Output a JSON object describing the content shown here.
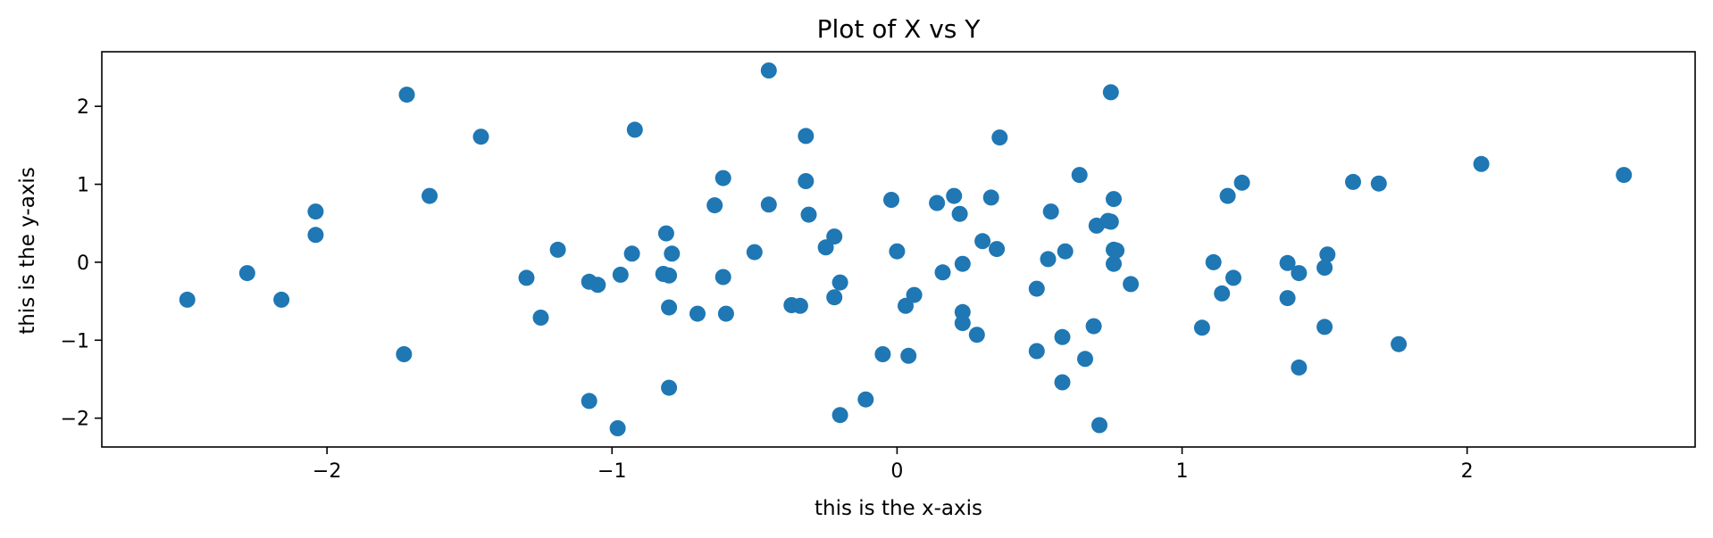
{
  "chart_data": {
    "type": "scatter",
    "title": "Plot of X vs Y",
    "xlabel": "this is the x-axis",
    "ylabel": "this is the y-axis",
    "xlim": [
      -2.79,
      2.8
    ],
    "ylim": [
      -2.37,
      2.7
    ],
    "xticks": [
      {
        "value": -2,
        "label": "−2"
      },
      {
        "value": -1,
        "label": "−1"
      },
      {
        "value": 0,
        "label": "0"
      },
      {
        "value": 1,
        "label": "1"
      },
      {
        "value": 2,
        "label": "2"
      }
    ],
    "yticks": [
      {
        "value": -2,
        "label": "−2"
      },
      {
        "value": -1,
        "label": "−1"
      },
      {
        "value": 0,
        "label": "0"
      },
      {
        "value": 1,
        "label": "1"
      },
      {
        "value": 2,
        "label": "2"
      }
    ],
    "grid": false,
    "marker_color": "#1f77b4",
    "points": [
      {
        "x": -2.49,
        "y": -0.48
      },
      {
        "x": -2.28,
        "y": -0.14
      },
      {
        "x": -2.16,
        "y": -0.48
      },
      {
        "x": -2.04,
        "y": 0.65
      },
      {
        "x": -2.04,
        "y": 0.35
      },
      {
        "x": -1.72,
        "y": 2.15
      },
      {
        "x": -1.73,
        "y": -1.18
      },
      {
        "x": -1.64,
        "y": 0.85
      },
      {
        "x": -1.46,
        "y": 1.61
      },
      {
        "x": -1.3,
        "y": -0.2
      },
      {
        "x": -1.25,
        "y": -0.71
      },
      {
        "x": -1.19,
        "y": 0.16
      },
      {
        "x": -1.08,
        "y": -0.25
      },
      {
        "x": -1.05,
        "y": -0.29
      },
      {
        "x": -1.08,
        "y": -1.78
      },
      {
        "x": -0.98,
        "y": -2.13
      },
      {
        "x": -0.97,
        "y": -0.16
      },
      {
        "x": -0.93,
        "y": 0.11
      },
      {
        "x": -0.92,
        "y": 1.7
      },
      {
        "x": -0.81,
        "y": 0.37
      },
      {
        "x": -0.82,
        "y": -0.15
      },
      {
        "x": -0.8,
        "y": -0.17
      },
      {
        "x": -0.79,
        "y": 0.11
      },
      {
        "x": -0.8,
        "y": -0.58
      },
      {
        "x": -0.8,
        "y": -1.61
      },
      {
        "x": -0.7,
        "y": -0.66
      },
      {
        "x": -0.64,
        "y": 0.73
      },
      {
        "x": -0.61,
        "y": 1.08
      },
      {
        "x": -0.61,
        "y": -0.19
      },
      {
        "x": -0.6,
        "y": -0.66
      },
      {
        "x": -0.5,
        "y": 0.13
      },
      {
        "x": -0.45,
        "y": 2.46
      },
      {
        "x": -0.45,
        "y": 0.74
      },
      {
        "x": -0.37,
        "y": -0.55
      },
      {
        "x": -0.34,
        "y": -0.56
      },
      {
        "x": -0.32,
        "y": 1.04
      },
      {
        "x": -0.32,
        "y": 1.62
      },
      {
        "x": -0.31,
        "y": 0.61
      },
      {
        "x": -0.25,
        "y": 0.19
      },
      {
        "x": -0.22,
        "y": 0.33
      },
      {
        "x": -0.22,
        "y": -0.45
      },
      {
        "x": -0.2,
        "y": -0.26
      },
      {
        "x": -0.2,
        "y": -1.96
      },
      {
        "x": -0.11,
        "y": -1.76
      },
      {
        "x": -0.05,
        "y": -1.18
      },
      {
        "x": -0.02,
        "y": 0.8
      },
      {
        "x": 0.0,
        "y": 0.14
      },
      {
        "x": 0.03,
        "y": -0.56
      },
      {
        "x": 0.04,
        "y": -1.2
      },
      {
        "x": 0.06,
        "y": -0.42
      },
      {
        "x": 0.14,
        "y": 0.76
      },
      {
        "x": 0.16,
        "y": -0.13
      },
      {
        "x": 0.2,
        "y": 0.85
      },
      {
        "x": 0.22,
        "y": 0.62
      },
      {
        "x": 0.23,
        "y": -0.02
      },
      {
        "x": 0.23,
        "y": -0.64
      },
      {
        "x": 0.23,
        "y": -0.78
      },
      {
        "x": 0.28,
        "y": -0.93
      },
      {
        "x": 0.3,
        "y": 0.27
      },
      {
        "x": 0.33,
        "y": 0.83
      },
      {
        "x": 0.35,
        "y": 0.17
      },
      {
        "x": 0.36,
        "y": 1.6
      },
      {
        "x": 0.49,
        "y": -0.34
      },
      {
        "x": 0.49,
        "y": -1.14
      },
      {
        "x": 0.53,
        "y": 0.04
      },
      {
        "x": 0.54,
        "y": 0.65
      },
      {
        "x": 0.58,
        "y": -0.96
      },
      {
        "x": 0.58,
        "y": -1.54
      },
      {
        "x": 0.59,
        "y": 0.14
      },
      {
        "x": 0.64,
        "y": 1.12
      },
      {
        "x": 0.66,
        "y": -1.24
      },
      {
        "x": 0.69,
        "y": -0.82
      },
      {
        "x": 0.7,
        "y": 0.47
      },
      {
        "x": 0.71,
        "y": -2.09
      },
      {
        "x": 0.74,
        "y": 0.53
      },
      {
        "x": 0.75,
        "y": 0.52
      },
      {
        "x": 0.75,
        "y": 2.18
      },
      {
        "x": 0.76,
        "y": 0.81
      },
      {
        "x": 0.76,
        "y": 0.16
      },
      {
        "x": 0.76,
        "y": -0.02
      },
      {
        "x": 0.77,
        "y": 0.15
      },
      {
        "x": 0.82,
        "y": -0.28
      },
      {
        "x": 1.07,
        "y": -0.84
      },
      {
        "x": 1.11,
        "y": 0.0
      },
      {
        "x": 1.14,
        "y": -0.4
      },
      {
        "x": 1.16,
        "y": 0.85
      },
      {
        "x": 1.18,
        "y": -0.2
      },
      {
        "x": 1.21,
        "y": 1.02
      },
      {
        "x": 1.37,
        "y": -0.01
      },
      {
        "x": 1.37,
        "y": -0.46
      },
      {
        "x": 1.41,
        "y": -0.14
      },
      {
        "x": 1.41,
        "y": -1.35
      },
      {
        "x": 1.5,
        "y": -0.07
      },
      {
        "x": 1.5,
        "y": -0.83
      },
      {
        "x": 1.51,
        "y": 0.1
      },
      {
        "x": 1.6,
        "y": 1.03
      },
      {
        "x": 1.69,
        "y": 1.01
      },
      {
        "x": 1.76,
        "y": -1.05
      },
      {
        "x": 2.05,
        "y": 1.26
      },
      {
        "x": 2.55,
        "y": 1.12
      }
    ]
  }
}
